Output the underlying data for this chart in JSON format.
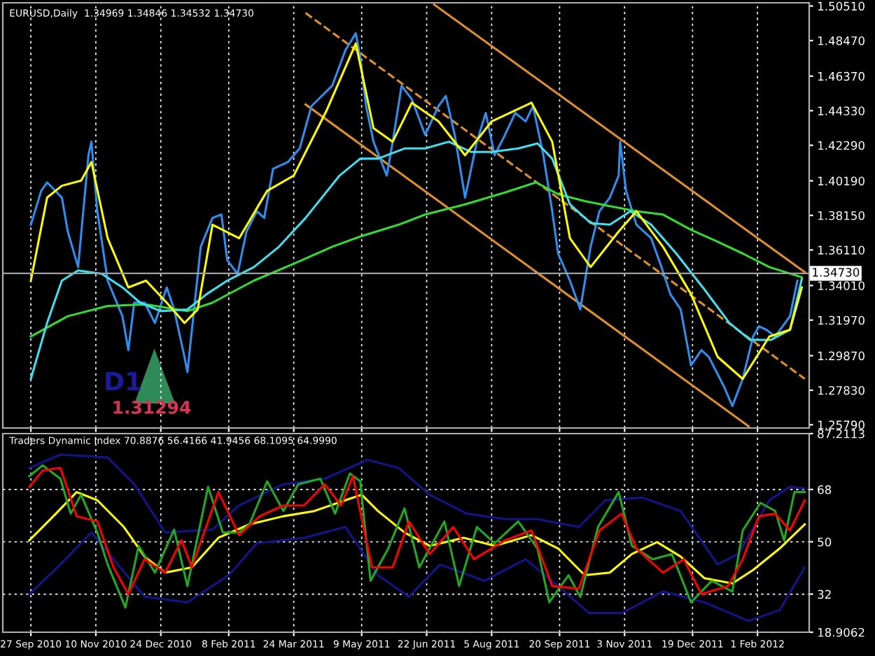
{
  "chart_data": [
    {
      "type": "line",
      "tick_labels": "y",
      "grid": "x",
      "annotations": [
        "EURUSD,Daily  1.34969 1.34846 1.34532 1.34730",
        "D1",
        "1.31294"
      ],
      "xlim": [
        "2010-09-08",
        "2012-03-07"
      ],
      "ylim": [
        1.256,
        1.507
      ],
      "xticks": [
        {
          "value": "2010-09-27",
          "label": null
        },
        {
          "value": "2010-11-10",
          "label": null
        },
        {
          "value": "2010-12-24",
          "label": null
        },
        {
          "value": "2011-02-08",
          "label": null
        },
        {
          "value": "2011-03-24",
          "label": null
        },
        {
          "value": "2011-05-09",
          "label": null
        },
        {
          "value": "2011-06-22",
          "label": null
        },
        {
          "value": "2011-08-05",
          "label": null
        },
        {
          "value": "2011-09-20",
          "label": null
        },
        {
          "value": "2011-11-03",
          "label": null
        },
        {
          "value": "2011-12-19",
          "label": null
        },
        {
          "value": "2012-02-01",
          "label": null
        }
      ],
      "yticks": [
        {
          "value": 1.2579,
          "label": "1.25790"
        },
        {
          "value": 1.2783,
          "label": "1.27830"
        },
        {
          "value": 1.2987,
          "label": "1.29870"
        },
        {
          "value": 1.3197,
          "label": "1.31970"
        },
        {
          "value": 1.3401,
          "label": "1.34010"
        },
        {
          "value": 1.3611,
          "label": "1.36110"
        },
        {
          "value": 1.3815,
          "label": "1.38150"
        },
        {
          "value": 1.4019,
          "label": "1.40190"
        },
        {
          "value": 1.4229,
          "label": "1.42290"
        },
        {
          "value": 1.4433,
          "label": "1.44330"
        },
        {
          "value": 1.4637,
          "label": "1.46370"
        },
        {
          "value": 1.4847,
          "label": "1.48470"
        },
        {
          "value": 1.5051,
          "label": "1.50510"
        }
      ],
      "ref_lines": [
        {
          "axis": "y",
          "value": 1.3473,
          "label": "1.34730",
          "color": "#a0a0a0"
        }
      ],
      "series": [
        {
          "color": "#e0902a",
          "line_style": "solid",
          "x": [
            "2011-06-27",
            "2012-03-04"
          ],
          "values": [
            1.506,
            1.348
          ]
        },
        {
          "color": "#e0902a",
          "line_style": "solid",
          "x": [
            "2011-04-01",
            "2012-01-26"
          ],
          "values": [
            1.447,
            1.257
          ]
        },
        {
          "color": "#e0902a",
          "line_style": "dashed",
          "x": [
            "2011-04-01",
            "2012-03-04"
          ],
          "values": [
            1.501,
            1.285
          ]
        },
        {
          "color": "#2f8ff0",
          "x": [
            "2010-09-27",
            "2010-10-04",
            "2010-10-08",
            "2010-10-18",
            "2010-10-22",
            "2010-10-29",
            "2010-11-05",
            "2010-11-07",
            "2010-11-11",
            "2010-11-18",
            "2010-11-28",
            "2010-12-02",
            "2010-12-06",
            "2010-12-13",
            "2010-12-20",
            "2010-12-28",
            "2011-01-02",
            "2011-01-09",
            "2011-01-11",
            "2011-01-16",
            "2011-01-20",
            "2011-01-28",
            "2011-02-03",
            "2011-02-07",
            "2011-02-14",
            "2011-02-20",
            "2011-02-27",
            "2011-03-04",
            "2011-03-10",
            "2011-03-20",
            "2011-03-28",
            "2011-04-05",
            "2011-04-19",
            "2011-04-28",
            "2011-05-05",
            "2011-05-08",
            "2011-05-12",
            "2011-05-17",
            "2011-05-26",
            "2011-05-30",
            "2011-06-05",
            "2011-06-12",
            "2011-06-21",
            "2011-06-30",
            "2011-07-05",
            "2011-07-11",
            "2011-07-18",
            "2011-07-26",
            "2011-08-01",
            "2011-08-07",
            "2011-08-14",
            "2011-08-21",
            "2011-08-28",
            "2011-09-02",
            "2011-09-09",
            "2011-09-15",
            "2011-09-19",
            "2011-09-27",
            "2011-10-04",
            "2011-10-11",
            "2011-10-17",
            "2011-10-24",
            "2011-10-30",
            "2011-10-31",
            "2011-11-04",
            "2011-11-11",
            "2011-11-21",
            "2011-11-28",
            "2011-12-04",
            "2011-12-11",
            "2011-12-18",
            "2011-12-25",
            "2011-12-30",
            "2012-01-09",
            "2012-01-15",
            "2012-01-22",
            "2012-01-29",
            "2012-02-02",
            "2012-02-07",
            "2012-02-13",
            "2012-02-23",
            "2012-02-28"
          ],
          "values": [
            1.376,
            1.396,
            1.401,
            1.392,
            1.372,
            1.351,
            1.417,
            1.425,
            1.384,
            1.343,
            1.322,
            1.302,
            1.33,
            1.33,
            1.318,
            1.339,
            1.326,
            1.298,
            1.289,
            1.33,
            1.363,
            1.38,
            1.382,
            1.355,
            1.347,
            1.372,
            1.384,
            1.38,
            1.409,
            1.413,
            1.421,
            1.446,
            1.458,
            1.479,
            1.489,
            1.475,
            1.446,
            1.425,
            1.405,
            1.425,
            1.458,
            1.45,
            1.429,
            1.446,
            1.452,
            1.429,
            1.392,
            1.425,
            1.442,
            1.417,
            1.429,
            1.442,
            1.437,
            1.446,
            1.417,
            1.384,
            1.359,
            1.343,
            1.326,
            1.363,
            1.384,
            1.392,
            1.405,
            1.425,
            1.396,
            1.376,
            1.368,
            1.351,
            1.335,
            1.326,
            1.293,
            1.302,
            1.298,
            1.281,
            1.269,
            1.285,
            1.31,
            1.316,
            1.314,
            1.31,
            1.322,
            1.343
          ]
        },
        {
          "color": "#33dd33",
          "x": [
            "2010-09-27",
            "2010-10-22",
            "2010-11-18",
            "2010-12-14",
            "2011-01-11",
            "2011-01-28",
            "2011-02-25",
            "2011-03-24",
            "2011-04-19",
            "2011-05-08",
            "2011-06-03",
            "2011-06-21",
            "2011-07-18",
            "2011-08-14",
            "2011-09-04",
            "2011-09-19",
            "2011-10-07",
            "2011-10-24",
            "2011-11-11",
            "2011-11-29",
            "2011-12-18",
            "2012-01-05",
            "2012-01-22",
            "2012-02-09",
            "2012-03-02"
          ],
          "values": [
            1.31,
            1.322,
            1.328,
            1.329,
            1.325,
            1.33,
            1.343,
            1.353,
            1.363,
            1.369,
            1.376,
            1.382,
            1.388,
            1.395,
            1.401,
            1.394,
            1.39,
            1.387,
            1.384,
            1.382,
            1.373,
            1.366,
            1.359,
            1.351,
            1.345
          ]
        },
        {
          "color": "#40e0f0",
          "x": [
            "2010-09-27",
            "2010-10-08",
            "2010-10-18",
            "2010-10-29",
            "2010-11-14",
            "2010-11-28",
            "2010-12-10",
            "2010-12-24",
            "2011-01-11",
            "2011-01-24",
            "2011-02-07",
            "2011-02-25",
            "2011-03-14",
            "2011-04-01",
            "2011-04-24",
            "2011-05-08",
            "2011-05-20",
            "2011-06-07",
            "2011-06-21",
            "2011-07-07",
            "2011-07-22",
            "2011-08-05",
            "2011-08-23",
            "2011-09-05",
            "2011-09-15",
            "2011-09-27",
            "2011-10-11",
            "2011-10-24",
            "2011-11-07",
            "2011-11-21",
            "2011-12-08",
            "2011-12-26",
            "2012-01-13",
            "2012-01-27",
            "2012-02-10",
            "2012-02-23",
            "2012-03-02"
          ],
          "values": [
            1.285,
            1.318,
            1.343,
            1.349,
            1.347,
            1.339,
            1.33,
            1.325,
            1.326,
            1.335,
            1.343,
            1.351,
            1.363,
            1.38,
            1.405,
            1.415,
            1.415,
            1.421,
            1.421,
            1.425,
            1.419,
            1.419,
            1.421,
            1.424,
            1.415,
            1.388,
            1.377,
            1.376,
            1.384,
            1.376,
            1.359,
            1.339,
            1.318,
            1.308,
            1.308,
            1.314,
            1.344
          ]
        },
        {
          "color": "#ffff00",
          "x": [
            "2010-09-27",
            "2010-10-08",
            "2010-10-18",
            "2010-10-31",
            "2010-11-07",
            "2010-11-18",
            "2010-12-02",
            "2010-12-14",
            "2010-12-28",
            "2011-01-09",
            "2011-01-18",
            "2011-01-28",
            "2011-02-15",
            "2011-03-06",
            "2011-03-24",
            "2011-04-15",
            "2011-05-05",
            "2011-05-17",
            "2011-05-30",
            "2011-06-12",
            "2011-06-30",
            "2011-07-18",
            "2011-08-05",
            "2011-09-01",
            "2011-09-15",
            "2011-09-27",
            "2011-10-11",
            "2011-10-30",
            "2011-11-11",
            "2011-11-29",
            "2011-12-18",
            "2012-01-05",
            "2012-01-22",
            "2012-02-09",
            "2012-02-23",
            "2012-03-02"
          ],
          "values": [
            1.343,
            1.392,
            1.399,
            1.402,
            1.413,
            1.368,
            1.339,
            1.343,
            1.33,
            1.318,
            1.326,
            1.376,
            1.368,
            1.396,
            1.405,
            1.443,
            1.483,
            1.433,
            1.425,
            1.448,
            1.437,
            1.417,
            1.437,
            1.448,
            1.425,
            1.368,
            1.351,
            1.372,
            1.384,
            1.363,
            1.335,
            1.298,
            1.285,
            1.31,
            1.314,
            1.339
          ]
        }
      ]
    },
    {
      "type": "line",
      "grid": true,
      "annotations": [
        "Traders Dynamic Index 70.8876 56.4166 41.9456 68.1095 64.9990"
      ],
      "xlim": [
        "2010-09-08",
        "2012-03-07"
      ],
      "ylim": [
        18.9062,
        87.2113
      ],
      "xticks": [
        {
          "value": "2010-09-27",
          "label": "27 Sep 2010"
        },
        {
          "value": "2010-11-10",
          "label": "10 Nov 2010"
        },
        {
          "value": "2010-12-24",
          "label": "24 Dec 2010"
        },
        {
          "value": "2011-02-08",
          "label": "8 Feb 2011"
        },
        {
          "value": "2011-03-24",
          "label": "24 Mar 2011"
        },
        {
          "value": "2011-05-09",
          "label": "9 May 2011"
        },
        {
          "value": "2011-06-22",
          "label": "22 Jun 2011"
        },
        {
          "value": "2011-08-05",
          "label": "5 Aug 2011"
        },
        {
          "value": "2011-09-20",
          "label": "20 Sep 2011"
        },
        {
          "value": "2011-11-03",
          "label": "3 Nov 2011"
        },
        {
          "value": "2011-12-19",
          "label": "19 Dec 2011"
        },
        {
          "value": "2012-02-01",
          "label": "1 Feb 2012"
        }
      ],
      "yticks": [
        18.9062,
        32,
        50,
        68,
        87.2113
      ],
      "series": [
        {
          "color": "#14148c",
          "x": [
            "2010-09-26",
            "2010-10-17",
            "2010-11-18",
            "2010-12-06",
            "2010-12-27",
            "2011-01-28",
            "2011-02-15",
            "2011-03-17",
            "2011-04-14",
            "2011-05-13",
            "2011-06-03",
            "2011-06-24",
            "2011-07-19",
            "2011-08-14",
            "2011-09-05",
            "2011-10-03",
            "2011-10-21",
            "2011-11-15",
            "2011-12-11",
            "2012-01-05",
            "2012-01-19",
            "2012-02-09",
            "2012-02-23",
            "2012-03-04"
          ],
          "values": [
            75.4,
            80,
            79,
            69.8,
            53.2,
            54.2,
            62.5,
            69.8,
            71.7,
            78.2,
            75.4,
            66.2,
            59.7,
            57.8,
            57.8,
            55.1,
            64.3,
            65.2,
            60.6,
            42.2,
            45.8,
            64.3,
            68.9,
            68.4
          ]
        },
        {
          "color": "#14148c",
          "x": [
            "2010-09-26",
            "2010-10-17",
            "2010-11-07",
            "2010-11-22",
            "2010-12-13",
            "2011-01-11",
            "2011-02-08",
            "2011-02-27",
            "2011-03-31",
            "2011-04-28",
            "2011-05-20",
            "2011-06-10",
            "2011-07-01",
            "2011-07-31",
            "2011-08-28",
            "2011-09-19",
            "2011-10-10",
            "2011-11-01",
            "2011-11-29",
            "2011-12-27",
            "2012-01-26",
            "2012-02-16",
            "2012-03-04"
          ],
          "values": [
            32,
            42.2,
            53.2,
            44,
            31.1,
            29.2,
            38.5,
            49.5,
            51.4,
            55.1,
            38.5,
            31.1,
            42.2,
            36.6,
            44,
            34.8,
            25.5,
            25.5,
            32.9,
            29.2,
            22.8,
            26.5,
            41.2
          ]
        },
        {
          "color": "#ffff00",
          "x": [
            "2010-09-26",
            "2010-10-14",
            "2010-10-28",
            "2010-11-11",
            "2010-11-29",
            "2010-12-13",
            "2010-12-27",
            "2011-01-14",
            "2011-02-01",
            "2011-02-22",
            "2011-03-17",
            "2011-04-07",
            "2011-04-28",
            "2011-05-09",
            "2011-05-20",
            "2011-06-07",
            "2011-06-24",
            "2011-07-17",
            "2011-08-07",
            "2011-09-01",
            "2011-09-19",
            "2011-10-07",
            "2011-10-24",
            "2011-11-08",
            "2011-11-25",
            "2011-12-11",
            "2011-12-27",
            "2012-01-15",
            "2012-01-29",
            "2012-02-16",
            "2012-03-04"
          ],
          "values": [
            50.5,
            59.7,
            67.1,
            64.3,
            55.1,
            44.9,
            39.4,
            41.2,
            51.4,
            56,
            58.8,
            60.6,
            64.3,
            66.2,
            60.6,
            53.2,
            48.6,
            51.4,
            48.6,
            52.3,
            47.7,
            38.5,
            39.4,
            45.8,
            49.9,
            44.9,
            37.5,
            35.7,
            40.3,
            47.7,
            56
          ]
        },
        {
          "color": "#22aa22",
          "x": [
            "2010-09-26",
            "2010-10-05",
            "2010-10-17",
            "2010-10-24",
            "2010-10-31",
            "2010-11-11",
            "2010-11-18",
            "2010-11-30",
            "2010-12-09",
            "2010-12-20",
            "2011-01-02",
            "2011-01-11",
            "2011-01-25",
            "2011-02-04",
            "2011-02-15",
            "2011-02-22",
            "2011-03-06",
            "2011-03-17",
            "2011-03-27",
            "2011-04-11",
            "2011-04-21",
            "2011-05-01",
            "2011-05-08",
            "2011-05-15",
            "2011-05-27",
            "2011-06-07",
            "2011-06-17",
            "2011-07-04",
            "2011-07-14",
            "2011-07-26",
            "2011-08-07",
            "2011-08-23",
            "2011-09-05",
            "2011-09-13",
            "2011-09-26",
            "2011-10-04",
            "2011-10-16",
            "2011-10-30",
            "2011-11-08",
            "2011-11-22",
            "2011-12-05",
            "2011-12-18",
            "2012-01-01",
            "2012-01-15",
            "2012-01-22",
            "2012-02-03",
            "2012-02-13",
            "2012-02-19",
            "2012-02-26",
            "2012-03-04"
          ],
          "values": [
            72.6,
            76.3,
            71.7,
            59.7,
            66.2,
            53.2,
            42.2,
            27.4,
            48.6,
            39.4,
            54.2,
            34.8,
            68.9,
            53.2,
            53.2,
            56,
            70.8,
            60.6,
            69.8,
            71.7,
            59.7,
            73.5,
            70.8,
            36.6,
            47.7,
            61.5,
            41.2,
            57,
            34.8,
            55.1,
            49.5,
            57,
            47.7,
            29.2,
            38.5,
            31.1,
            55.1,
            67.1,
            48.6,
            44,
            45.8,
            29.2,
            36.6,
            32.9,
            53.9,
            63.4,
            60.6,
            50.5,
            67.1,
            67.1
          ]
        },
        {
          "color": "#ff0000",
          "x": [
            "2010-09-26",
            "2010-10-05",
            "2010-10-17",
            "2010-10-28",
            "2010-11-11",
            "2010-11-22",
            "2010-12-02",
            "2010-12-13",
            "2010-12-27",
            "2011-01-07",
            "2011-01-14",
            "2011-02-01",
            "2011-02-15",
            "2011-03-01",
            "2011-03-17",
            "2011-03-31",
            "2011-04-14",
            "2011-04-25",
            "2011-05-03",
            "2011-05-16",
            "2011-05-30",
            "2011-06-10",
            "2011-06-24",
            "2011-07-10",
            "2011-07-24",
            "2011-08-14",
            "2011-09-01",
            "2011-09-15",
            "2011-10-03",
            "2011-10-17",
            "2011-11-01",
            "2011-11-11",
            "2011-11-29",
            "2011-12-13",
            "2011-12-25",
            "2012-01-12",
            "2012-01-22",
            "2012-02-02",
            "2012-02-13",
            "2012-02-23",
            "2012-03-04"
          ],
          "values": [
            68.9,
            74.5,
            75.4,
            58.8,
            57,
            41.2,
            32,
            44,
            39.4,
            50.5,
            41.2,
            67.1,
            52.3,
            58.8,
            62.5,
            62.5,
            69.8,
            62.5,
            72.6,
            41.2,
            41.2,
            57,
            45.8,
            55.1,
            44,
            50.5,
            53.9,
            34.8,
            33.9,
            53.9,
            59.7,
            47.7,
            39.4,
            44,
            32,
            34.8,
            44,
            58.8,
            59.7,
            53.9,
            64.3
          ]
        }
      ]
    }
  ]
}
